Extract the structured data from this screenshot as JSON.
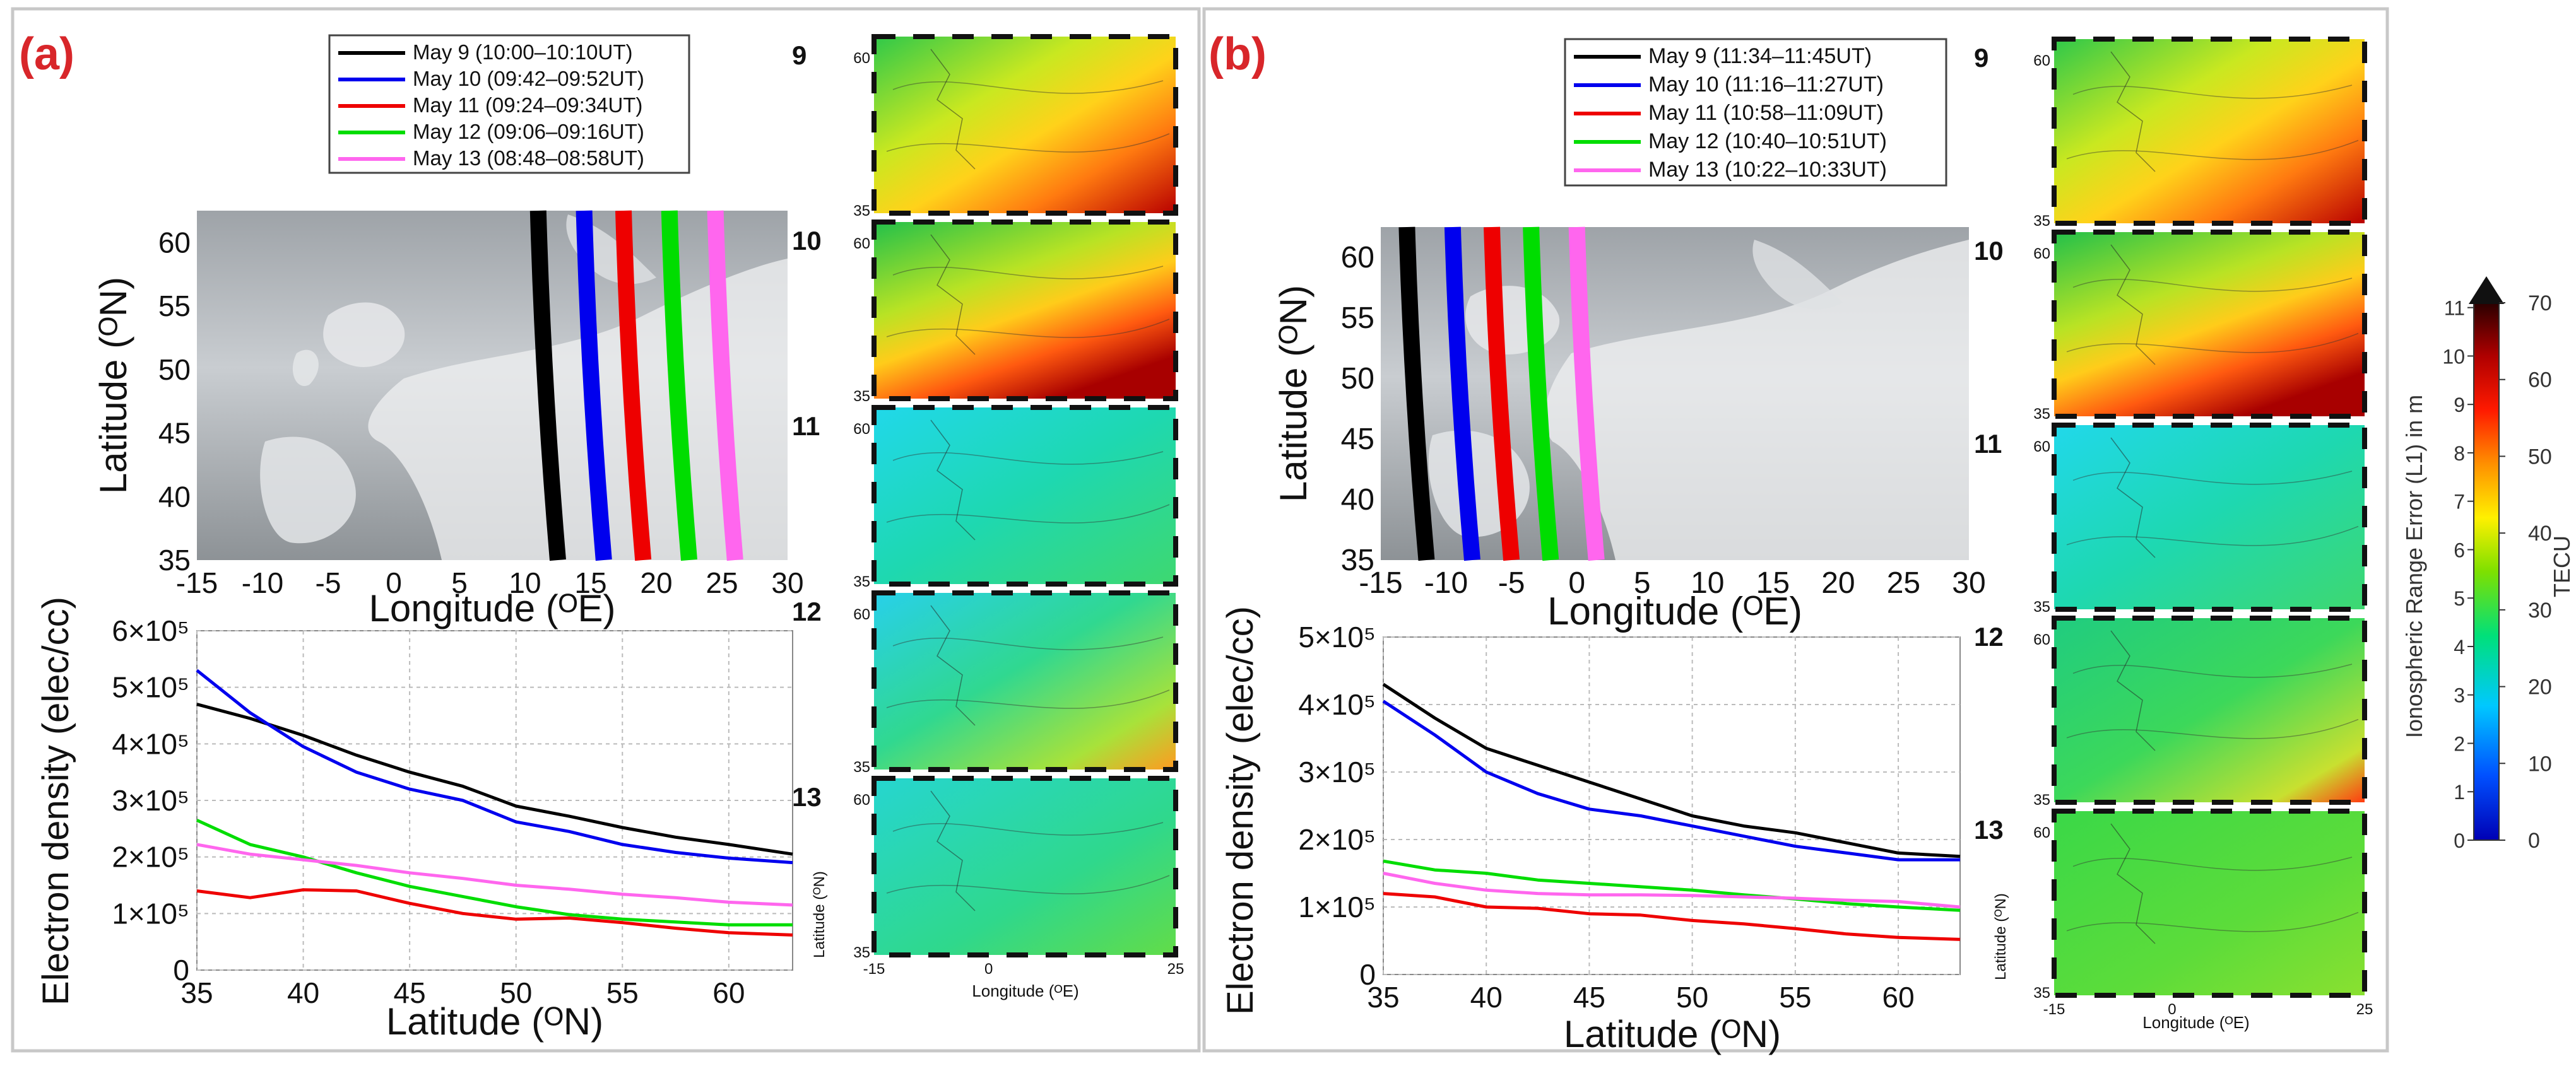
{
  "colors": {
    "may9": "#000000",
    "may10": "#0000ee",
    "may11": "#ee0000",
    "may12": "#00dd00",
    "may13": "#ff66ee",
    "panel_label": "#d8262a"
  },
  "colorbar": {
    "tecu_ticks": [
      "0",
      "10",
      "20",
      "30",
      "40",
      "50",
      "60",
      "70"
    ],
    "range_ticks": [
      "0",
      "1",
      "2",
      "3",
      "4",
      "5",
      "6",
      "7",
      "8",
      "9",
      "10",
      "11"
    ],
    "label_left": "Ionospheric Range Error (L1) in m",
    "label_right": "TECU"
  },
  "panels": [
    {
      "id": "a",
      "label": "(a)",
      "legend": [
        {
          "day": "may9",
          "text": "May 9 (10:00–10:10UT)"
        },
        {
          "day": "may10",
          "text": "May 10 (09:42–09:52UT)"
        },
        {
          "day": "may11",
          "text": "May 11 (09:24–09:34UT)"
        },
        {
          "day": "may12",
          "text": "May 12 (09:06–09:16UT)"
        },
        {
          "day": "may13",
          "text": "May 13 (08:48–08:58UT)"
        }
      ],
      "map": {
        "xlabel": "Longitude (ᴼE)",
        "ylabel": "Latitude (ᴼN)",
        "xlim": [
          -15,
          30
        ],
        "ylim": [
          35,
          62.5
        ],
        "xticks": [
          "-15",
          "-10",
          "-5",
          "0",
          "5",
          "10",
          "15",
          "20",
          "25",
          "30"
        ],
        "yticks": [
          "35",
          "40",
          "45",
          "50",
          "55",
          "60"
        ],
        "tracks": [
          {
            "day": "may9",
            "lon_south": 12.5,
            "lon_north": 11.0
          },
          {
            "day": "may10",
            "lon_south": 16.0,
            "lon_north": 14.5
          },
          {
            "day": "may11",
            "lon_south": 19.0,
            "lon_north": 17.5
          },
          {
            "day": "may12",
            "lon_south": 22.5,
            "lon_north": 21.0
          },
          {
            "day": "may13",
            "lon_south": 26.0,
            "lon_north": 24.5
          }
        ]
      },
      "chart_data": {
        "type": "line",
        "xlabel": "Latitude (ᴼN)",
        "ylabel": "Electron density (elec/cc)",
        "xlim": [
          35,
          63
        ],
        "ylim": [
          0,
          600000
        ],
        "xticks": [
          "35",
          "40",
          "45",
          "50",
          "55",
          "60"
        ],
        "yticks": [
          "0",
          "1×10⁵",
          "2×10⁵",
          "3×10⁵",
          "4×10⁵",
          "5×10⁵",
          "6×10⁵"
        ],
        "x": [
          35,
          37.5,
          40,
          42.5,
          45,
          47.5,
          50,
          52.5,
          55,
          57.5,
          60,
          63
        ],
        "series": [
          {
            "name": "May 9",
            "day": "may9",
            "values": [
              470000,
              445000,
              415000,
              380000,
              350000,
              325000,
              290000,
              272000,
              252000,
              235000,
              222000,
              205000
            ]
          },
          {
            "name": "May 10",
            "day": "may10",
            "values": [
              530000,
              455000,
              395000,
              350000,
              320000,
              300000,
              262000,
              245000,
              222000,
              208000,
              198000,
              190000
            ]
          },
          {
            "name": "May 11",
            "day": "may11",
            "values": [
              140000,
              128000,
              142000,
              140000,
              118000,
              100000,
              90000,
              92000,
              84000,
              74000,
              66000,
              62000
            ]
          },
          {
            "name": "May 12",
            "day": "may12",
            "values": [
              265000,
              222000,
              200000,
              172000,
              148000,
              130000,
              112000,
              98000,
              90000,
              85000,
              80000,
              80000
            ]
          },
          {
            "name": "May 13",
            "day": "may13",
            "values": [
              222000,
              205000,
              195000,
              185000,
              172000,
              162000,
              150000,
              143000,
              134000,
              128000,
              120000,
              115000
            ]
          }
        ]
      },
      "tec_maps": [
        {
          "label": "9",
          "scheme": "strong",
          "ylat_ticks": [
            "60",
            "35"
          ]
        },
        {
          "label": "10",
          "scheme": "strong2",
          "ylat_ticks": [
            "60",
            "35"
          ]
        },
        {
          "label": "11",
          "scheme": "cyan",
          "ylat_ticks": [
            "60",
            "35"
          ]
        },
        {
          "label": "12",
          "scheme": "cyanwarm",
          "ylat_ticks": [
            "60",
            "35"
          ]
        },
        {
          "label": "13",
          "scheme": "cyangreen",
          "ylat_ticks": [
            "60",
            "35"
          ]
        }
      ],
      "tec_axis": {
        "ylabel": "Latitude (ᴼN)",
        "xlabel": "Longitude (ᴼE)",
        "xticks": [
          "-15",
          "0",
          "25"
        ]
      }
    },
    {
      "id": "b",
      "label": "(b)",
      "legend": [
        {
          "day": "may9",
          "text": "May 9 (11:34–11:45UT)"
        },
        {
          "day": "may10",
          "text": "May 10 (11:16–11:27UT)"
        },
        {
          "day": "may11",
          "text": "May 11 (10:58–11:09UT)"
        },
        {
          "day": "may12",
          "text": "May 12 (10:40–10:51UT)"
        },
        {
          "day": "may13",
          "text": "May 13 (10:22–10:33UT)"
        }
      ],
      "map": {
        "xlabel": "Longitude (ᴼE)",
        "ylabel": "Latitude (ᴼN)",
        "xlim": [
          -15,
          30
        ],
        "ylim": [
          35,
          62.5
        ],
        "xticks": [
          "-15",
          "-10",
          "-5",
          "0",
          "5",
          "10",
          "15",
          "20",
          "25",
          "30"
        ],
        "yticks": [
          "35",
          "40",
          "45",
          "50",
          "55",
          "60"
        ],
        "tracks": [
          {
            "day": "may9",
            "lon_south": -11.5,
            "lon_north": -13.0
          },
          {
            "day": "may10",
            "lon_south": -8.0,
            "lon_north": -9.5
          },
          {
            "day": "may11",
            "lon_south": -5.0,
            "lon_north": -6.5
          },
          {
            "day": "may12",
            "lon_south": -2.0,
            "lon_north": -3.5
          },
          {
            "day": "may13",
            "lon_south": 1.5,
            "lon_north": 0.0
          }
        ]
      },
      "chart_data": {
        "type": "line",
        "xlabel": "Latitude (ᴼN)",
        "ylabel": "Electron density (elec/cc)",
        "xlim": [
          35,
          63
        ],
        "ylim": [
          0,
          500000
        ],
        "xticks": [
          "35",
          "40",
          "45",
          "50",
          "55",
          "60"
        ],
        "yticks": [
          "0",
          "1×10⁵",
          "2×10⁵",
          "3×10⁵",
          "4×10⁵",
          "5×10⁵"
        ],
        "x": [
          35,
          37.5,
          40,
          42.5,
          45,
          47.5,
          50,
          52.5,
          55,
          57.5,
          60,
          63
        ],
        "series": [
          {
            "name": "May 9",
            "day": "may9",
            "values": [
              430000,
              380000,
              335000,
              310000,
              285000,
              260000,
              235000,
              220000,
              210000,
              195000,
              180000,
              175000
            ]
          },
          {
            "name": "May 10",
            "day": "may10",
            "values": [
              405000,
              355000,
              300000,
              268000,
              245000,
              235000,
              220000,
              205000,
              190000,
              180000,
              170000,
              170000
            ]
          },
          {
            "name": "May 11",
            "day": "may11",
            "values": [
              120000,
              115000,
              100000,
              98000,
              90000,
              88000,
              80000,
              75000,
              68000,
              60000,
              55000,
              52000
            ]
          },
          {
            "name": "May 12",
            "day": "may12",
            "values": [
              168000,
              155000,
              150000,
              140000,
              135000,
              130000,
              125000,
              118000,
              112000,
              105000,
              100000,
              95000
            ]
          },
          {
            "name": "May 13",
            "day": "may13",
            "values": [
              150000,
              135000,
              125000,
              120000,
              118000,
              118000,
              117000,
              115000,
              113000,
              110000,
              108000,
              100000
            ]
          }
        ]
      },
      "tec_maps": [
        {
          "label": "9",
          "scheme": "strong",
          "ylat_ticks": [
            "60",
            "35"
          ]
        },
        {
          "label": "10",
          "scheme": "strong2",
          "ylat_ticks": [
            "60",
            "35"
          ]
        },
        {
          "label": "11",
          "scheme": "cyan",
          "ylat_ticks": [
            "60",
            "35"
          ]
        },
        {
          "label": "12",
          "scheme": "greenwarm",
          "ylat_ticks": [
            "60",
            "35"
          ]
        },
        {
          "label": "13",
          "scheme": "greenonly",
          "ylat_ticks": [
            "60",
            "35"
          ]
        }
      ],
      "tec_axis": {
        "ylabel": "Latitude (ᴼN)",
        "xlabel": "Longitude (ᴼE)",
        "xticks": [
          "-15",
          "0",
          "25"
        ]
      }
    }
  ]
}
